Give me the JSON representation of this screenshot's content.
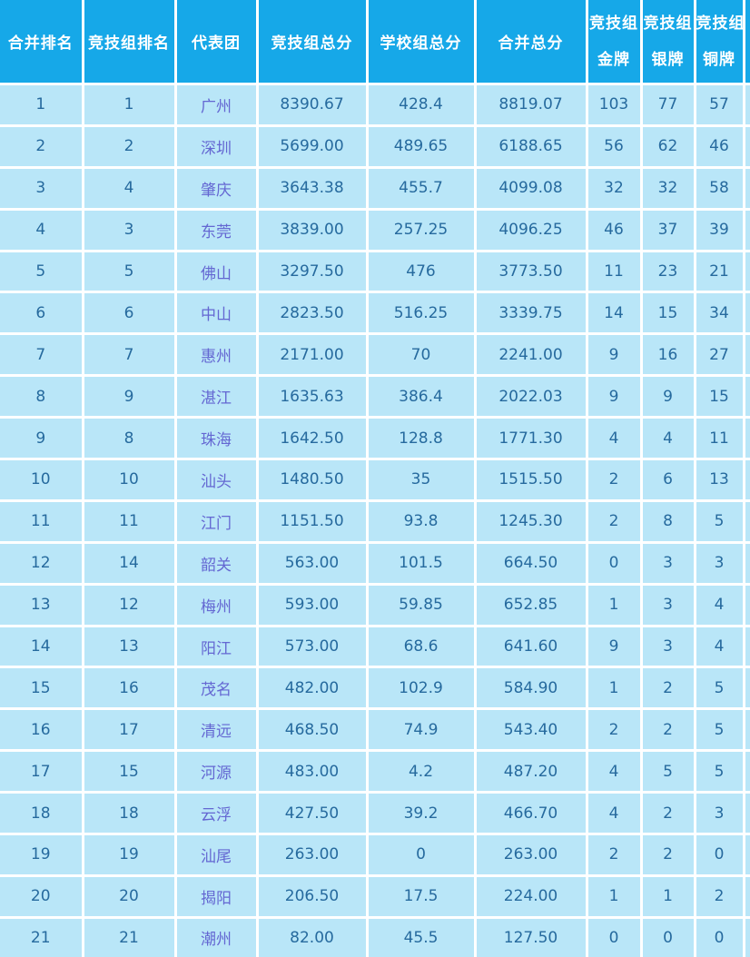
{
  "colors": {
    "header_bg": "#16A8E8",
    "row_bg": "#B9E6F8",
    "gridline": "#FFFFFF",
    "number_text": "#266A9E",
    "header_text": "#FFFFFF",
    "delegation_link": "#6467D2"
  },
  "table": {
    "headers": [
      {
        "label": "合并排名"
      },
      {
        "label": "竞技组排名"
      },
      {
        "label": "代表团"
      },
      {
        "label": "竞技组总分"
      },
      {
        "label": "学校组总分"
      },
      {
        "label": "合并总分"
      },
      {
        "line1": "竞技组",
        "line2": "金牌"
      },
      {
        "line1": "竞技组",
        "line2": "银牌"
      },
      {
        "line1": "竞技组",
        "line2": "铜牌"
      }
    ],
    "rows": [
      [
        "1",
        "1",
        "广州",
        "8390.67",
        "428.4",
        "8819.07",
        "103",
        "77",
        "57"
      ],
      [
        "2",
        "2",
        "深圳",
        "5699.00",
        "489.65",
        "6188.65",
        "56",
        "62",
        "46"
      ],
      [
        "3",
        "4",
        "肇庆",
        "3643.38",
        "455.7",
        "4099.08",
        "32",
        "32",
        "58"
      ],
      [
        "4",
        "3",
        "东莞",
        "3839.00",
        "257.25",
        "4096.25",
        "46",
        "37",
        "39"
      ],
      [
        "5",
        "5",
        "佛山",
        "3297.50",
        "476",
        "3773.50",
        "11",
        "23",
        "21"
      ],
      [
        "6",
        "6",
        "中山",
        "2823.50",
        "516.25",
        "3339.75",
        "14",
        "15",
        "34"
      ],
      [
        "7",
        "7",
        "惠州",
        "2171.00",
        "70",
        "2241.00",
        "9",
        "16",
        "27"
      ],
      [
        "8",
        "9",
        "湛江",
        "1635.63",
        "386.4",
        "2022.03",
        "9",
        "9",
        "15"
      ],
      [
        "9",
        "8",
        "珠海",
        "1642.50",
        "128.8",
        "1771.30",
        "4",
        "4",
        "11"
      ],
      [
        "10",
        "10",
        "汕头",
        "1480.50",
        "35",
        "1515.50",
        "2",
        "6",
        "13"
      ],
      [
        "11",
        "11",
        "江门",
        "1151.50",
        "93.8",
        "1245.30",
        "2",
        "8",
        "5"
      ],
      [
        "12",
        "14",
        "韶关",
        "563.00",
        "101.5",
        "664.50",
        "0",
        "3",
        "3"
      ],
      [
        "13",
        "12",
        "梅州",
        "593.00",
        "59.85",
        "652.85",
        "1",
        "3",
        "4"
      ],
      [
        "14",
        "13",
        "阳江",
        "573.00",
        "68.6",
        "641.60",
        "9",
        "3",
        "4"
      ],
      [
        "15",
        "16",
        "茂名",
        "482.00",
        "102.9",
        "584.90",
        "1",
        "2",
        "5"
      ],
      [
        "16",
        "17",
        "清远",
        "468.50",
        "74.9",
        "543.40",
        "2",
        "2",
        "5"
      ],
      [
        "17",
        "15",
        "河源",
        "483.00",
        "4.2",
        "487.20",
        "4",
        "5",
        "5"
      ],
      [
        "18",
        "18",
        "云浮",
        "427.50",
        "39.2",
        "466.70",
        "4",
        "2",
        "3"
      ],
      [
        "19",
        "19",
        "汕尾",
        "263.00",
        "0",
        "263.00",
        "2",
        "2",
        "0"
      ],
      [
        "20",
        "20",
        "揭阳",
        "206.50",
        "17.5",
        "224.00",
        "1",
        "1",
        "2"
      ],
      [
        "21",
        "21",
        "潮州",
        "82.00",
        "45.5",
        "127.50",
        "0",
        "0",
        "0"
      ]
    ]
  }
}
